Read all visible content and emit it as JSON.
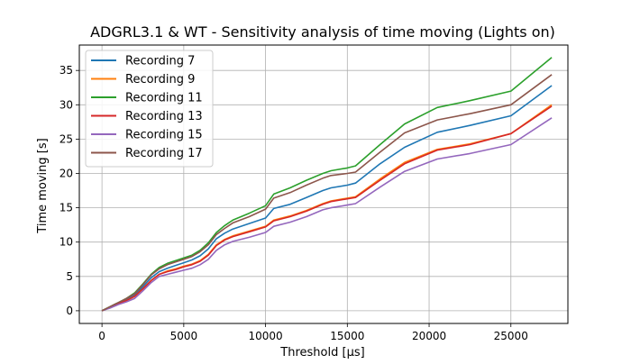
{
  "chart_data": {
    "type": "line",
    "title": "ADGRL3.1 & WT - Sensitivity analysis of time moving (Lights on)",
    "xlabel": "Threshold [µs]",
    "ylabel": "Time moving [s]",
    "xlim": [
      -1385,
      28485
    ],
    "ylim": [
      -1.85,
      38.7
    ],
    "xticks": [
      0,
      5000,
      10000,
      15000,
      20000,
      25000
    ],
    "xtick_labels": [
      "0",
      "5000",
      "10000",
      "15000",
      "20000",
      "25000"
    ],
    "yticks": [
      0,
      5,
      10,
      15,
      20,
      25,
      30,
      35
    ],
    "ytick_labels": [
      "0",
      "5",
      "10",
      "15",
      "20",
      "25",
      "30",
      "35"
    ],
    "grid": true,
    "legend_position": "top-left",
    "x": [
      0,
      500,
      1000,
      1500,
      2000,
      2500,
      3000,
      3500,
      4000,
      4500,
      5000,
      5500,
      6000,
      6500,
      7000,
      7500,
      8000,
      9000,
      10000,
      10500,
      11500,
      12500,
      13500,
      14000,
      15000,
      15500,
      17000,
      18500,
      20500,
      22500,
      25000,
      27500
    ],
    "series": [
      {
        "name": "Recording 7",
        "color": "#1f77b4",
        "values": [
          0,
          0.5,
          1.1,
          1.6,
          2.3,
          3.5,
          4.8,
          5.7,
          6.2,
          6.6,
          7.0,
          7.4,
          8.0,
          9.0,
          10.5,
          11.3,
          11.9,
          12.7,
          13.5,
          14.9,
          15.5,
          16.5,
          17.5,
          17.9,
          18.3,
          18.6,
          21.4,
          23.8,
          26.0,
          27.0,
          28.4,
          32.8
        ]
      },
      {
        "name": "Recording 9",
        "color": "#ff7f0e",
        "values": [
          0,
          0.5,
          1.0,
          1.5,
          2.1,
          3.2,
          4.4,
          5.3,
          5.8,
          6.1,
          6.5,
          6.8,
          7.3,
          8.2,
          9.6,
          10.4,
          10.9,
          11.6,
          12.3,
          13.2,
          13.8,
          14.6,
          15.6,
          16.0,
          16.4,
          16.6,
          19.2,
          21.6,
          23.5,
          24.3,
          25.8,
          30.0
        ]
      },
      {
        "name": "Recording 11",
        "color": "#2ca02c",
        "values": [
          0,
          0.6,
          1.2,
          1.8,
          2.6,
          3.9,
          5.3,
          6.3,
          6.9,
          7.3,
          7.7,
          8.1,
          8.8,
          9.9,
          11.4,
          12.4,
          13.2,
          14.2,
          15.3,
          17.0,
          17.9,
          19.0,
          20.0,
          20.4,
          20.8,
          21.1,
          24.2,
          27.2,
          29.6,
          30.6,
          32.0,
          36.9
        ]
      },
      {
        "name": "Recording 13",
        "color": "#d62728",
        "values": [
          0,
          0.5,
          1.0,
          1.5,
          2.1,
          3.2,
          4.4,
          5.3,
          5.7,
          6.0,
          6.4,
          6.7,
          7.2,
          8.1,
          9.5,
          10.3,
          10.8,
          11.5,
          12.2,
          13.1,
          13.7,
          14.5,
          15.5,
          15.9,
          16.3,
          16.5,
          19.0,
          21.4,
          23.4,
          24.2,
          25.8,
          29.8
        ]
      },
      {
        "name": "Recording 15",
        "color": "#9467bd",
        "values": [
          0,
          0.4,
          0.9,
          1.3,
          1.8,
          2.9,
          4.1,
          5.0,
          5.3,
          5.6,
          5.9,
          6.2,
          6.7,
          7.5,
          8.8,
          9.6,
          10.1,
          10.7,
          11.4,
          12.3,
          12.9,
          13.7,
          14.7,
          15.0,
          15.4,
          15.6,
          18.0,
          20.3,
          22.1,
          22.9,
          24.2,
          28.1
        ]
      },
      {
        "name": "Recording 17",
        "color": "#8c564b",
        "values": [
          0,
          0.6,
          1.2,
          1.8,
          2.5,
          3.8,
          5.2,
          6.1,
          6.7,
          7.1,
          7.5,
          7.9,
          8.6,
          9.6,
          11.1,
          12.0,
          12.8,
          13.7,
          14.8,
          16.4,
          17.2,
          18.3,
          19.3,
          19.7,
          20.0,
          20.2,
          23.1,
          25.9,
          27.8,
          28.7,
          30.0,
          34.4
        ]
      }
    ]
  }
}
